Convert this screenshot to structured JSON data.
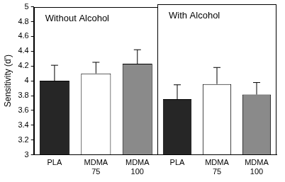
{
  "chart_data": [
    {
      "type": "bar",
      "title": "Without Alcohol",
      "y_label": "Sensitivity (d')",
      "categories": [
        "PLA",
        "MDMA 75",
        "MDMA 100"
      ],
      "values": [
        4.0,
        4.1,
        4.23
      ],
      "errors": [
        0.21,
        0.15,
        0.19
      ],
      "colors": [
        "#262626",
        "#ffffff",
        "#8a8a8a"
      ],
      "ylim": [
        3,
        5
      ],
      "yticks": [
        3,
        3.2,
        3.4,
        3.6,
        3.8,
        4,
        4.2,
        4.4,
        4.6,
        4.8,
        5
      ],
      "grid": false
    },
    {
      "type": "bar",
      "title": "With Alcohol",
      "categories": [
        "PLA",
        "MDMA 75",
        "MDMA 100"
      ],
      "values": [
        3.74,
        3.94,
        3.8
      ],
      "errors": [
        0.19,
        0.22,
        0.16
      ],
      "colors": [
        "#262626",
        "#ffffff",
        "#8a8a8a"
      ],
      "ylim": [
        3,
        5
      ],
      "yticks": [
        3,
        3.2,
        3.4,
        3.6,
        3.8,
        4,
        4.2,
        4.4,
        4.6,
        4.8,
        5
      ],
      "grid": false,
      "tick_labels": "x"
    }
  ]
}
